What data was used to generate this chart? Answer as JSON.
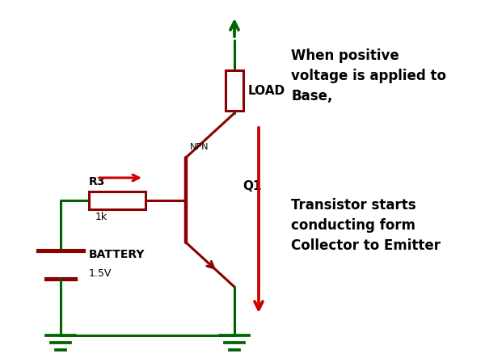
{
  "bg_color": "#ffffff",
  "dark_green": "#006400",
  "dark_red": "#8B0000",
  "red": "#cc0000",
  "lw_main": 2.2,
  "text_color": "#000000",
  "annotation_text1": "When positive\nvoltage is applied to\nBase,",
  "annotation_text2": "Transistor starts\nconducting form\nCollector to Emitter",
  "label_load": "LOAD",
  "label_q1": "Q1",
  "label_r3": "R3",
  "label_npn": "NPN",
  "label_1k": "1k",
  "label_battery": "BATTERY",
  "label_1_5v": "1.5V",
  "figw": 6.0,
  "figh": 4.43,
  "dpi": 100
}
